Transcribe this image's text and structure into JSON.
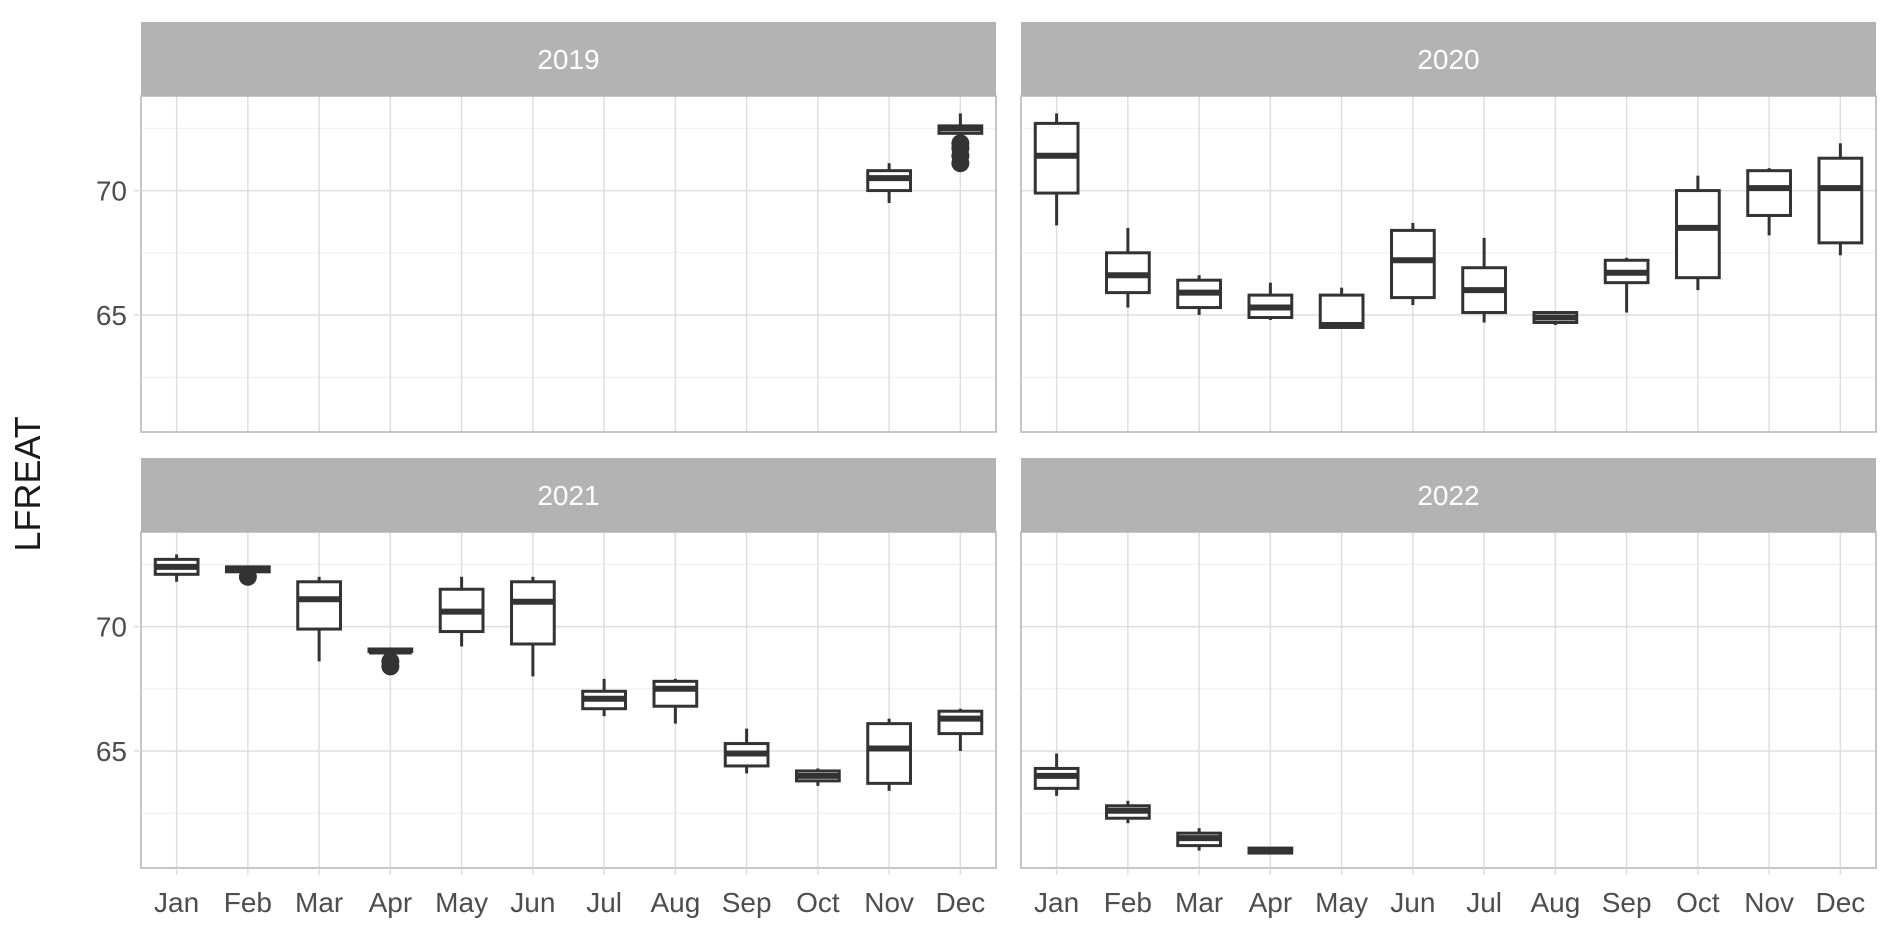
{
  "chart_data": {
    "type": "boxplot",
    "facet_by": "year",
    "ylabel": "LFREAT",
    "xlabel": "",
    "months": [
      "Jan",
      "Feb",
      "Mar",
      "Apr",
      "May",
      "Jun",
      "Jul",
      "Aug",
      "Sep",
      "Oct",
      "Nov",
      "Dec"
    ],
    "y_ticks": [
      65,
      70
    ],
    "ylim": [
      60.3,
      73.8
    ],
    "grid": true,
    "colors": {
      "box": "#333333",
      "strip_fill": "#b3b3b3",
      "strip_text": "#ffffff",
      "panel_border": "#b3b3b3",
      "grid_major": "#dedede",
      "grid_minor": "#eeeeee"
    },
    "facets": [
      {
        "label": "2019",
        "boxes": [
          {
            "month": "Nov",
            "min": 69.5,
            "q1": 70.0,
            "median": 70.5,
            "q3": 70.8,
            "max": 71.1
          },
          {
            "month": "Dec",
            "min": 72.3,
            "q1": 72.3,
            "median": 72.5,
            "q3": 72.6,
            "max": 73.1,
            "outliers": [
              71.1,
              71.4,
              71.7,
              71.9
            ]
          }
        ]
      },
      {
        "label": "2020",
        "boxes": [
          {
            "month": "Jan",
            "min": 68.6,
            "q1": 69.9,
            "median": 71.4,
            "q3": 72.7,
            "max": 73.1
          },
          {
            "month": "Feb",
            "min": 65.3,
            "q1": 65.9,
            "median": 66.6,
            "q3": 67.5,
            "max": 68.5
          },
          {
            "month": "Mar",
            "min": 65.0,
            "q1": 65.3,
            "median": 65.9,
            "q3": 66.4,
            "max": 66.6
          },
          {
            "month": "Apr",
            "min": 64.8,
            "q1": 64.9,
            "median": 65.3,
            "q3": 65.8,
            "max": 66.3
          },
          {
            "month": "May",
            "min": 64.5,
            "q1": 64.5,
            "median": 64.6,
            "q3": 65.8,
            "max": 66.1
          },
          {
            "month": "Jun",
            "min": 65.4,
            "q1": 65.7,
            "median": 67.2,
            "q3": 68.4,
            "max": 68.7
          },
          {
            "month": "Jul",
            "min": 64.7,
            "q1": 65.1,
            "median": 66.0,
            "q3": 66.9,
            "max": 68.1
          },
          {
            "month": "Aug",
            "min": 64.6,
            "q1": 64.7,
            "median": 64.9,
            "q3": 65.1,
            "max": 65.1
          },
          {
            "month": "Sep",
            "min": 65.1,
            "q1": 66.3,
            "median": 66.7,
            "q3": 67.2,
            "max": 67.3
          },
          {
            "month": "Oct",
            "min": 66.0,
            "q1": 66.5,
            "median": 68.5,
            "q3": 70.0,
            "max": 70.6
          },
          {
            "month": "Nov",
            "min": 68.2,
            "q1": 69.0,
            "median": 70.1,
            "q3": 70.8,
            "max": 70.9
          },
          {
            "month": "Dec",
            "min": 67.4,
            "q1": 67.9,
            "median": 70.1,
            "q3": 71.3,
            "max": 71.9
          }
        ]
      },
      {
        "label": "2021",
        "boxes": [
          {
            "month": "Jan",
            "min": 71.8,
            "q1": 72.1,
            "median": 72.4,
            "q3": 72.7,
            "max": 72.9
          },
          {
            "month": "Feb",
            "min": 72.2,
            "q1": 72.2,
            "median": 72.3,
            "q3": 72.4,
            "max": 72.4,
            "outliers": [
              72.0
            ]
          },
          {
            "month": "Mar",
            "min": 68.6,
            "q1": 69.9,
            "median": 71.1,
            "q3": 71.8,
            "max": 72.0
          },
          {
            "month": "Apr",
            "min": 69.0,
            "q1": 69.0,
            "median": 69.0,
            "q3": 69.1,
            "max": 69.1,
            "outliers": [
              68.4,
              68.6
            ]
          },
          {
            "month": "May",
            "min": 69.2,
            "q1": 69.8,
            "median": 70.6,
            "q3": 71.5,
            "max": 72.0
          },
          {
            "month": "Jun",
            "min": 68.0,
            "q1": 69.3,
            "median": 71.0,
            "q3": 71.8,
            "max": 72.0
          },
          {
            "month": "Jul",
            "min": 66.4,
            "q1": 66.7,
            "median": 67.1,
            "q3": 67.4,
            "max": 67.9
          },
          {
            "month": "Aug",
            "min": 66.1,
            "q1": 66.8,
            "median": 67.5,
            "q3": 67.8,
            "max": 67.9
          },
          {
            "month": "Sep",
            "min": 64.1,
            "q1": 64.4,
            "median": 64.9,
            "q3": 65.3,
            "max": 65.9
          },
          {
            "month": "Oct",
            "min": 63.6,
            "q1": 63.8,
            "median": 64.0,
            "q3": 64.2,
            "max": 64.3
          },
          {
            "month": "Nov",
            "min": 63.4,
            "q1": 63.7,
            "median": 65.1,
            "q3": 66.1,
            "max": 66.3
          },
          {
            "month": "Dec",
            "min": 65.0,
            "q1": 65.7,
            "median": 66.3,
            "q3": 66.6,
            "max": 66.7
          }
        ]
      },
      {
        "label": "2022",
        "boxes": [
          {
            "month": "Jan",
            "min": 63.2,
            "q1": 63.5,
            "median": 64.0,
            "q3": 64.3,
            "max": 64.9
          },
          {
            "month": "Feb",
            "min": 62.1,
            "q1": 62.3,
            "median": 62.6,
            "q3": 62.8,
            "max": 63.0
          },
          {
            "month": "Mar",
            "min": 61.0,
            "q1": 61.2,
            "median": 61.5,
            "q3": 61.7,
            "max": 61.9
          },
          {
            "month": "Apr",
            "min": 60.9,
            "q1": 60.9,
            "median": 61.0,
            "q3": 61.1,
            "max": 61.1
          }
        ]
      }
    ]
  }
}
